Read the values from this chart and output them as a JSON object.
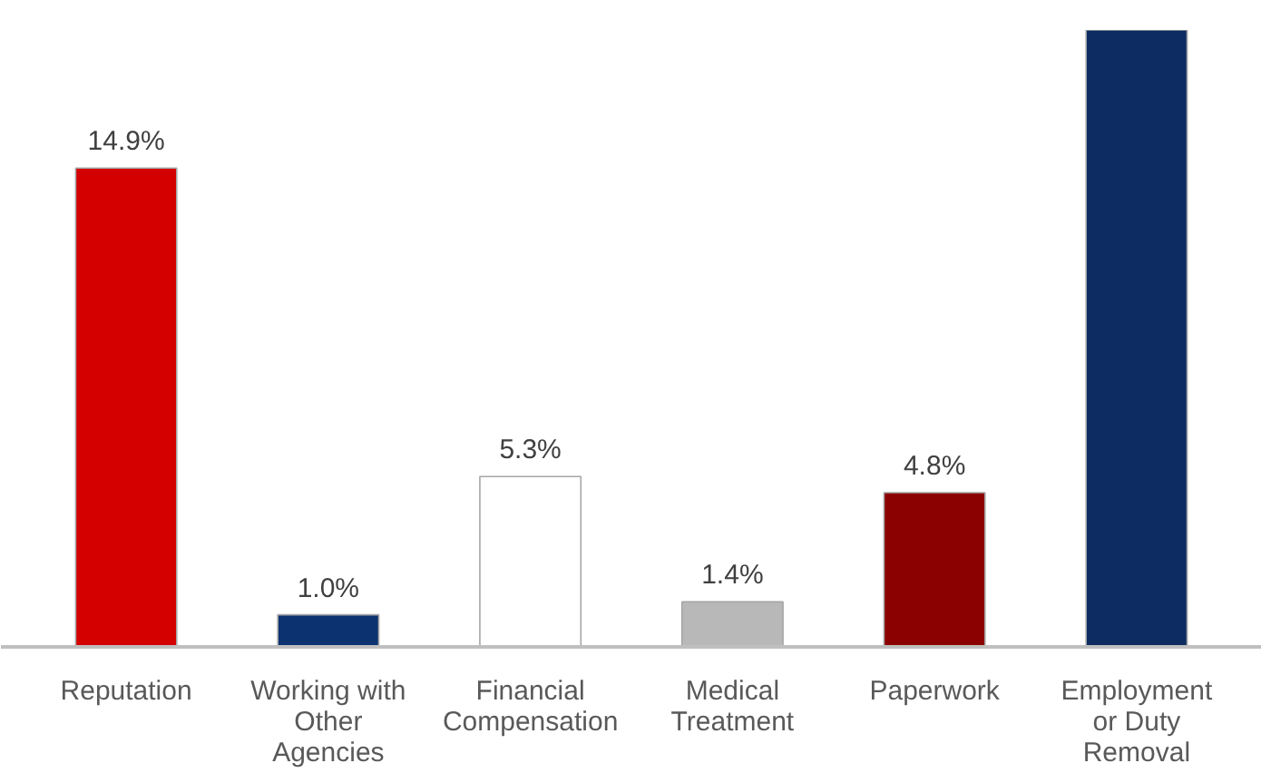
{
  "chart_data": {
    "type": "bar",
    "categories": [
      "Reputation",
      "Working with Other Agencies",
      "Financial Compensation",
      "Medical Treatment",
      "Paperwork",
      "Employment or Duty Removal"
    ],
    "values": [
      14.9,
      1.0,
      5.3,
      1.4,
      4.8,
      19.2
    ],
    "colors": [
      "#d40000",
      "#0c3270",
      "#ffffff",
      "#b8b8b8",
      "#8b0000",
      "#0d2c62"
    ],
    "value_labels": [
      "14.9%",
      "1.0%",
      "5.3%",
      "1.4%",
      "4.8%",
      null
    ],
    "grid": false,
    "tick_labels": "x"
  }
}
